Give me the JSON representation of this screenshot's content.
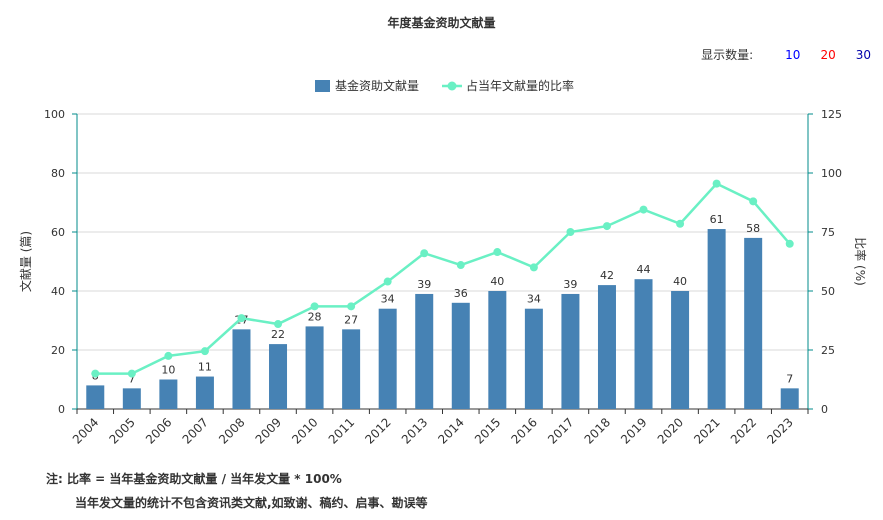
{
  "title": "年度基金资助文献量",
  "display_count": {
    "label": "显示数量:",
    "options": [
      {
        "label": "10",
        "color": "#0000ff"
      },
      {
        "label": "20",
        "color": "#ff0000"
      },
      {
        "label": "30",
        "color": "#0000aa"
      }
    ]
  },
  "notes": {
    "line1": "注:   比率 = 当年基金资助文献量 / 当年发文量 * 100%",
    "line2": "当年发文量的统计不包含资讯类文献,如致谢、稿约、启事、勘误等"
  },
  "chart_data": {
    "type": "bar",
    "categories": [
      "2004",
      "2005",
      "2006",
      "2007",
      "2008",
      "2009",
      "2010",
      "2011",
      "2012",
      "2013",
      "2014",
      "2015",
      "2016",
      "2017",
      "2018",
      "2019",
      "2020",
      "2021",
      "2022",
      "2023"
    ],
    "series": [
      {
        "name": "基金资助文献量",
        "type": "bar",
        "axis": "left",
        "color": "#4682b4",
        "values": [
          8,
          7,
          10,
          11,
          27,
          22,
          28,
          27,
          34,
          39,
          36,
          40,
          34,
          39,
          42,
          44,
          40,
          61,
          58,
          7
        ]
      },
      {
        "name": "占当年文献量的比率",
        "type": "line",
        "axis": "right",
        "color": "#6af0c4",
        "values": [
          15,
          15,
          22.5,
          24.5,
          38.5,
          36,
          43.5,
          43.5,
          54,
          66,
          61,
          66.5,
          60,
          75,
          77.5,
          84.5,
          78.5,
          95.5,
          88,
          70
        ]
      }
    ],
    "ylabel": "文献量 (篇)",
    "ylabel_right": "比率 (%)",
    "ylim": [
      0,
      100
    ],
    "yticks": [
      0,
      20,
      40,
      60,
      80,
      100
    ],
    "ylim_right": [
      0,
      125
    ],
    "yticks_right": [
      0,
      25,
      50,
      75,
      100,
      125
    ],
    "grid": true,
    "legend": "top-center"
  }
}
